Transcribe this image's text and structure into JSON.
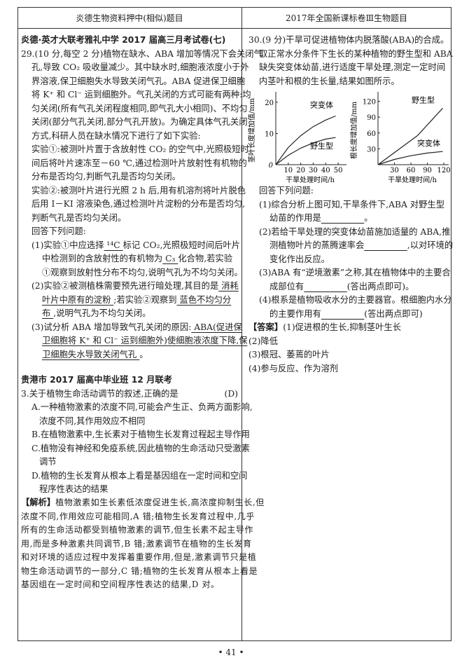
{
  "header": {
    "left": "炎德生物资料押中(相似)题目",
    "right": "2017年全国新课标卷Ⅲ生物题目"
  },
  "left": {
    "q29": [
      {
        "i": 0,
        "s": [
          {
            "t": "炎德·英才大联考雅礼中学 2017 届高三月考试卷(七)",
            "b": 1
          }
        ]
      },
      {
        "i": 0,
        "s": [
          {
            "t": "29.(10 分,每空 2 分)植物在缺水、ABA 增加等情况下会关闭气"
          }
        ]
      },
      {
        "i": 1,
        "s": [
          {
            "t": "孔,导致 CO₂ 吸收量减少。其中缺水时,细胞液浓度小于外"
          }
        ]
      },
      {
        "i": 1,
        "s": [
          {
            "t": "界溶液,保卫细胞失水导致关闭气孔。ABA 促进保卫细胞"
          }
        ]
      },
      {
        "i": 1,
        "s": [
          {
            "t": "将 K⁺ 和 Cl⁻ 运到细胞外。气孔关闭的方式可能有两种:均"
          }
        ]
      },
      {
        "i": 1,
        "s": [
          {
            "t": "匀关闭(所有气孔关闭程度相同,即气孔大小相同)、不均匀"
          }
        ]
      },
      {
        "i": 1,
        "s": [
          {
            "t": "关闭(部分气孔关闭,部分气孔开放)。为确定具体气孔关闭"
          }
        ]
      },
      {
        "i": 1,
        "s": [
          {
            "t": "方式,科研人员在缺水情况下进行了如下实验:"
          }
        ]
      },
      {
        "i": 1,
        "s": [
          {
            "t": "实验①:被测叶片置于含放射性 CO₂ 的空气中,光照极短时"
          }
        ]
      },
      {
        "i": 1,
        "s": [
          {
            "t": "间后将叶片速冻至－60 ℃,通过检测叶片放射性有机物的"
          }
        ]
      },
      {
        "i": 1,
        "s": [
          {
            "t": "分布是否均匀,判断气孔是否均匀关闭。"
          }
        ]
      },
      {
        "i": 1,
        "s": [
          {
            "t": "实验②:被测叶片进行光照 2 h 后,用有机溶剂将叶片脱色"
          }
        ]
      },
      {
        "i": 1,
        "s": [
          {
            "t": "后用 I－KI 溶液染色,通过检测叶片淀粉的分布是否均匀,"
          }
        ]
      },
      {
        "i": 1,
        "s": [
          {
            "t": "判断气孔是否均匀关闭。"
          }
        ]
      },
      {
        "i": 1,
        "s": [
          {
            "t": "回答下列问题:"
          }
        ]
      },
      {
        "i": 1,
        "s": [
          {
            "t": "(1)实验①中应选择"
          },
          {
            "t": "  ¹⁴C  ",
            "u": 1
          },
          {
            "t": "标记 CO₂,光照极短时间后叶片"
          }
        ]
      },
      {
        "i": 2,
        "s": [
          {
            "t": "中检测到的含放射性的有机物为"
          },
          {
            "t": "  C₃  ",
            "u": 1
          },
          {
            "t": "化合物,若实验"
          }
        ]
      },
      {
        "i": 2,
        "s": [
          {
            "t": "①观察到放射性分布不均匀,说明气孔为不均匀关闭。"
          }
        ]
      },
      {
        "i": 1,
        "s": [
          {
            "t": "(2)实验②被测植株需要预先进行暗处理,其目的是"
          },
          {
            "t": "  消耗",
            "u": 1
          }
        ]
      },
      {
        "i": 2,
        "s": [
          {
            "t": "叶片中原有的淀粉  ",
            "u": 1
          },
          {
            "t": ";若实验②观察到"
          },
          {
            "t": "  蓝色不均匀分",
            "u": 1
          }
        ]
      },
      {
        "i": 2,
        "s": [
          {
            "t": "布  ",
            "u": 1
          },
          {
            "t": ",说明气孔为不均匀关闭。"
          }
        ]
      },
      {
        "i": 1,
        "s": [
          {
            "t": "(3)试分析 ABA 增加导致气孔关闭的原因:"
          },
          {
            "t": "  ABA(促进保",
            "u": 1
          }
        ]
      },
      {
        "i": 2,
        "s": [
          {
            "t": "卫细胞将 K⁺ 和 Cl⁻ 运到细胞外)使细胞液浓度下降,保",
            "u": 1
          }
        ]
      },
      {
        "i": 2,
        "s": [
          {
            "t": "卫细胞失水导致关闭气孔  ",
            "u": 1
          },
          {
            "t": "。"
          }
        ]
      }
    ],
    "q3": [
      {
        "i": 0,
        "s": [
          {
            "t": "贵港市 2017 届高中毕业班 12 月联考",
            "b": 1
          }
        ]
      },
      {
        "i": 0,
        "s": [
          {
            "t": "3.关于植物生命活动调节的叙述,正确的是"
          }
        ],
        "r": "(D)"
      },
      {
        "i": 1,
        "s": [
          {
            "t": "A.一种植物激素的浓度不同,可能会产生正、负两方面影响,"
          }
        ]
      },
      {
        "i": 3,
        "s": [
          {
            "t": "浓度不同,其作用效应不相同"
          }
        ]
      },
      {
        "i": 1,
        "s": [
          {
            "t": "B.在植物激素中,生长素对于植物生长发育过程起主导作用"
          }
        ]
      },
      {
        "i": 1,
        "s": [
          {
            "t": "C.植物没有神经和免疫系统,因此植物的生命活动只受激素"
          }
        ]
      },
      {
        "i": 3,
        "s": [
          {
            "t": "调节"
          }
        ]
      },
      {
        "i": 1,
        "s": [
          {
            "t": "D.植物的生长发育从根本上看是基因组在一定时间和空间"
          }
        ]
      },
      {
        "i": 3,
        "s": [
          {
            "t": "程序性表达的结果"
          }
        ]
      }
    ],
    "analysis": [
      {
        "i": 0,
        "s": [
          {
            "t": "【解析】",
            "b": 1
          },
          {
            "t": "植物激素如生长素低浓度促进生长,高浓度抑制生长,但",
            "k": 1
          }
        ]
      },
      {
        "i": 0,
        "s": [
          {
            "t": "浓度不同,作用效应可能相同,A 错;植物生长发育过程中,几乎",
            "k": 1
          }
        ]
      },
      {
        "i": 0,
        "s": [
          {
            "t": "所有的生命活动都受到植物激素的调节,但生长素不起主导作",
            "k": 1
          }
        ]
      },
      {
        "i": 0,
        "s": [
          {
            "t": "用,而是多种激素共同调节,B 错;激素调节在植物的生长发育",
            "k": 1
          }
        ]
      },
      {
        "i": 0,
        "s": [
          {
            "t": "和对环境的适应过程中发挥着重要作用,但是,激素调节只是植",
            "k": 1
          }
        ]
      },
      {
        "i": 0,
        "s": [
          {
            "t": "物生命活动调节的一部分,C 错;植物的生长发育从根本上看是",
            "k": 1
          }
        ]
      },
      {
        "i": 0,
        "s": [
          {
            "t": "基因组在一定时间和空间程序性表达的结果,D 对。",
            "k": 1
          }
        ]
      }
    ]
  },
  "right": {
    "q30_intro": [
      {
        "i": 0,
        "s": [
          {
            "t": "30.(9 分)干旱可促进植物体内脱落酸(ABA)的合成。"
          }
        ]
      },
      {
        "i": 1,
        "s": [
          {
            "t": "取正常水分条件下生长的某种植物的野生型和 ABA"
          }
        ]
      },
      {
        "i": 1,
        "s": [
          {
            "t": "缺失突变体幼苗,进行适度干旱处理,测定一定时间"
          }
        ]
      },
      {
        "i": 1,
        "s": [
          {
            "t": "内茎叶和根的生长量,结果如图所示。"
          }
        ]
      }
    ],
    "q30_questions": [
      {
        "i": 1,
        "s": [
          {
            "t": "回答下列问题:"
          }
        ]
      },
      {
        "i": 1,
        "s": [
          {
            "t": "(1)综合分析上图可知,干旱条件下,ABA 对野生型"
          }
        ]
      },
      {
        "i": 2,
        "s": [
          {
            "t": "幼苗的作用是"
          },
          {
            "t": "　　　　　",
            "u": 1
          },
          {
            "t": "。"
          }
        ]
      },
      {
        "i": 1,
        "s": [
          {
            "t": "(2)若给干旱处理的突变体幼苗施加适量的 ABA,推"
          }
        ]
      },
      {
        "i": 2,
        "s": [
          {
            "t": "测植物叶片的蒸腾速率会"
          },
          {
            "t": "　　　　　",
            "u": 1
          },
          {
            "t": ",以对环境的"
          }
        ]
      },
      {
        "i": 2,
        "s": [
          {
            "t": "变化作出反应。"
          }
        ]
      },
      {
        "i": 1,
        "s": [
          {
            "t": "(3)ABA 有“逆境激素”之称,其在植物体中的主要合"
          }
        ]
      },
      {
        "i": 2,
        "s": [
          {
            "t": "成部位有"
          },
          {
            "t": "　　　　　",
            "u": 1
          },
          {
            "t": "(答出两点即可)。"
          }
        ]
      },
      {
        "i": 1,
        "s": [
          {
            "t": "(4)根系是植物吸收水分的主要器官。根细胞内水分"
          }
        ]
      },
      {
        "i": 2,
        "s": [
          {
            "t": "的主要作用有"
          },
          {
            "t": "　　　　　",
            "u": 1
          },
          {
            "t": "(答出两点即可)"
          }
        ]
      },
      {
        "i": 0,
        "s": [
          {
            "t": "【答案】",
            "b": 1
          },
          {
            "t": "(1)促进根的生长,抑制茎叶生长"
          }
        ]
      },
      {
        "i": 0,
        "s": [
          {
            "t": "(2)降低"
          }
        ]
      },
      {
        "i": 0,
        "s": [
          {
            "t": "(3)根冠、萎蔫的叶片"
          }
        ]
      },
      {
        "i": 0,
        "s": [
          {
            "t": "(4)参与反应、作为溶剂"
          }
        ]
      }
    ]
  },
  "chart_data": [
    {
      "type": "line",
      "ylabel": "茎叶长度增加值/mm",
      "xlabel": "干旱处理时间/h",
      "origin_label": "0",
      "xticks": [
        10,
        20,
        30,
        40,
        50
      ],
      "yticks": [
        10,
        20
      ],
      "xlim": [
        0,
        55
      ],
      "ylim": [
        0,
        22
      ],
      "series": [
        {
          "name": "突变体",
          "x": [
            0,
            10,
            20,
            30,
            40,
            48
          ],
          "y": [
            0,
            5.5,
            9.3,
            12.2,
            14.3,
            15.6
          ]
        },
        {
          "name": "野生型",
          "x": [
            0,
            10,
            20,
            30,
            40,
            48
          ],
          "y": [
            0,
            3,
            5.3,
            7,
            8.2,
            8.7
          ]
        }
      ]
    },
    {
      "type": "line",
      "ylabel": "根长度增加值/mm",
      "xlabel": "干旱处理时间/h",
      "xticks": [
        30,
        60,
        90,
        120
      ],
      "yticks": [
        30,
        60,
        90,
        120
      ],
      "xlim": [
        0,
        125
      ],
      "ylim": [
        0,
        130
      ],
      "series": [
        {
          "name": "野生型",
          "x": [
            0,
            72,
            118
          ],
          "y": [
            0,
            55,
            107
          ]
        },
        {
          "name": "突变体",
          "x": [
            0,
            30,
            60,
            90,
            118
          ],
          "y": [
            0,
            10,
            17,
            22,
            25
          ]
        }
      ]
    }
  ],
  "footer": {
    "page": "• 41 •"
  }
}
